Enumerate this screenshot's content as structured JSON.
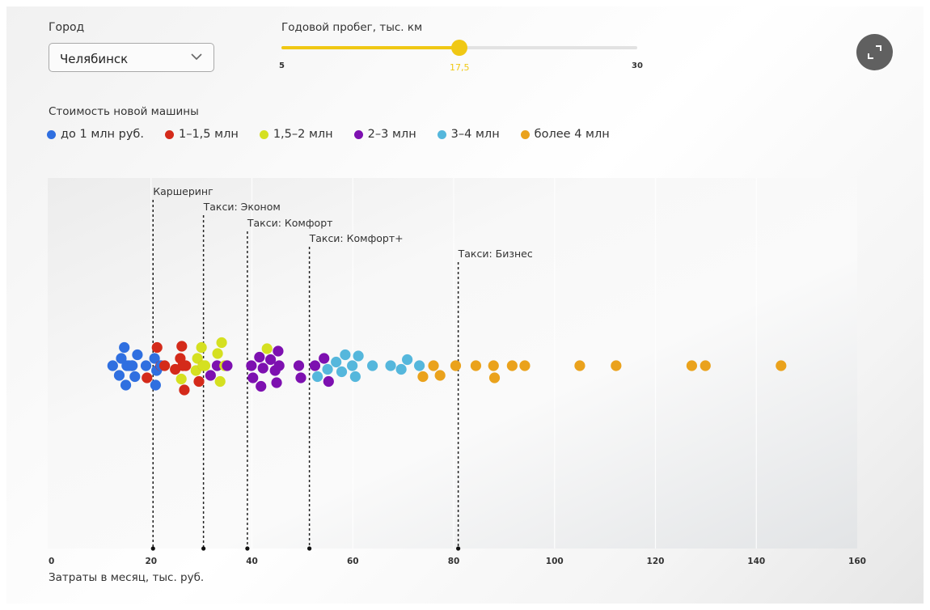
{
  "filters": {
    "city": {
      "label": "Город",
      "value": "Челябинск"
    },
    "mileage": {
      "label": "Годовой пробег, тыс. км",
      "min": 5,
      "max": 30,
      "value": 17.5,
      "min_label": "5",
      "max_label": "30",
      "value_label": "17,5"
    }
  },
  "expand_button": {
    "icon": "expand-icon"
  },
  "legend": {
    "title": "Стоимость новой машины",
    "items": [
      {
        "key": "lt1",
        "label": "до 1 млн руб.",
        "color": "#2f6fe0"
      },
      {
        "key": "1to15",
        "label": "1–1,5 млн",
        "color": "#d42a1a"
      },
      {
        "key": "15to2",
        "label": "1,5–2 млн",
        "color": "#d5e021"
      },
      {
        "key": "2to3",
        "label": "2–3 млн",
        "color": "#7d10b0"
      },
      {
        "key": "3to4",
        "label": "3–4 млн",
        "color": "#55b7dc"
      },
      {
        "key": "gt4",
        "label": "более 4 млн",
        "color": "#eaa21c"
      }
    ]
  },
  "chart_data": {
    "type": "scatter",
    "subtype": "beeswarm",
    "title": "",
    "xlabel": "Затраты в месяц, тыс. руб.",
    "ylabel": "",
    "xlim": [
      0,
      160
    ],
    "xticks": [
      0,
      20,
      40,
      60,
      80,
      100,
      120,
      140,
      160
    ],
    "xtick_labels": [
      "0",
      "20",
      "40",
      "60",
      "80",
      "100",
      "120",
      "140",
      "160"
    ],
    "grid": true,
    "legend_position": "top",
    "reference_lines": [
      {
        "label": "Каршеринг",
        "x": 20.4
      },
      {
        "label": "Такси: Эконом",
        "x": 30.4
      },
      {
        "label": "Такси: Комфорт",
        "x": 39.1
      },
      {
        "label": "Такси: Комфорт+",
        "x": 51.4
      },
      {
        "label": "Такси: Бизнес",
        "x": 80.9
      }
    ],
    "series": [
      {
        "name": "до 1 млн руб.",
        "key": "lt1",
        "values": [
          12.4,
          13.7,
          14.7,
          15.0,
          15.2,
          16.3,
          14.1,
          15.6,
          17.3,
          16.2,
          16.8,
          19.0,
          20.7,
          20.9,
          21.1,
          22.0
        ]
      },
      {
        "name": "1–1,5 млн",
        "key": "1to15",
        "values": [
          19.2,
          21.2,
          21.9,
          22.7,
          24.8,
          25.8,
          26.1,
          26.3,
          26.6,
          26.9,
          29.5,
          30.3
        ]
      },
      {
        "name": "1,5–2 млн",
        "key": "15to2",
        "values": [
          26.0,
          28.9,
          29.2,
          30.0,
          30.3,
          30.7,
          33.2,
          33.7,
          34.0,
          34.6,
          34.9,
          43.0
        ]
      },
      {
        "name": "2–3 млн",
        "key": "2to3",
        "values": [
          31.8,
          33.1,
          35.1,
          39.9,
          40.2,
          41.5,
          41.8,
          42.2,
          43.7,
          44.6,
          44.9,
          45.2,
          45.4,
          49.3,
          49.7,
          52.5,
          54.3,
          55.2
        ]
      },
      {
        "name": "3–4 млн",
        "key": "3to4",
        "values": [
          53.0,
          55.0,
          56.7,
          57.8,
          58.5,
          59.9,
          60.5,
          61.1,
          63.9,
          67.5,
          69.6,
          70.8,
          73.2
        ]
      },
      {
        "name": "более 4 млн",
        "key": "gt4",
        "values": [
          73.9,
          76.0,
          77.3,
          80.4,
          84.4,
          87.9,
          88.1,
          91.6,
          94.1,
          105.0,
          112.2,
          127.2,
          129.9,
          144.9
        ]
      }
    ]
  }
}
